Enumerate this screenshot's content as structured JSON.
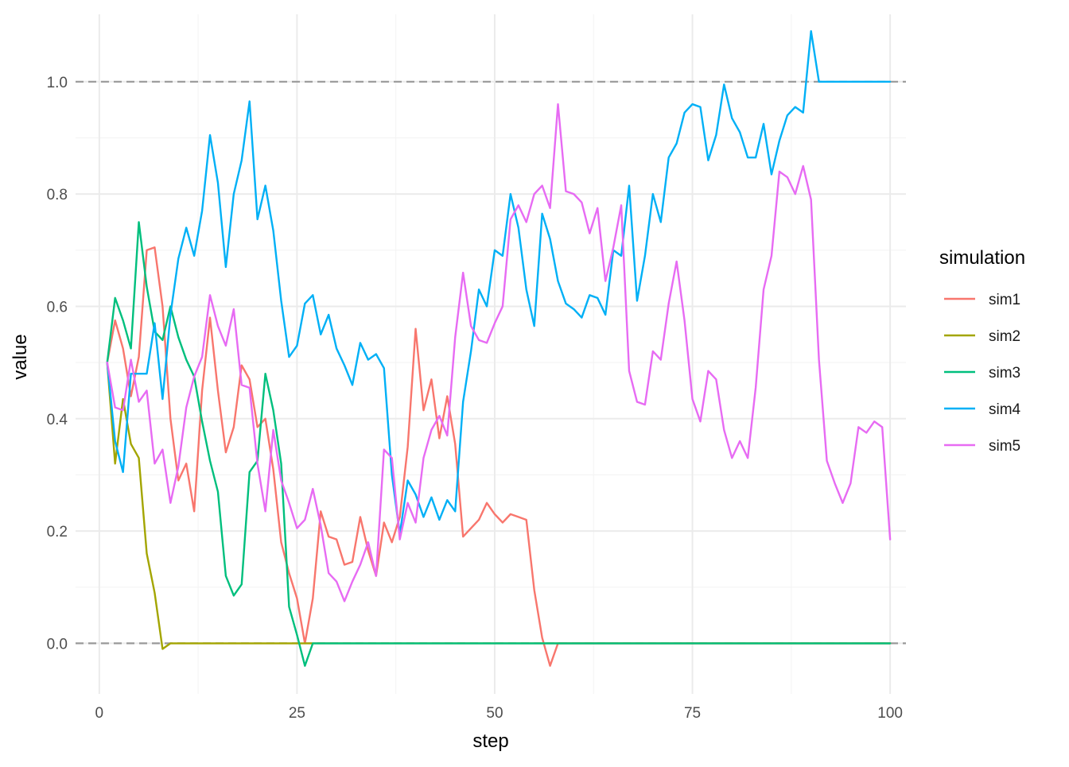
{
  "chart_data": {
    "type": "line",
    "xlabel": "step",
    "ylabel": "value",
    "xlim": [
      -3,
      102
    ],
    "ylim": [
      -0.09,
      1.12
    ],
    "x_ticks": [
      0,
      25,
      50,
      75,
      100
    ],
    "y_ticks": [
      0.0,
      0.2,
      0.4,
      0.6,
      0.8,
      1.0
    ],
    "x_tick_labels": [
      "0",
      "25",
      "50",
      "75",
      "100"
    ],
    "y_tick_labels": [
      "0.0",
      "0.2",
      "0.4",
      "0.6",
      "0.8",
      "1.0"
    ],
    "reference_lines": [
      0,
      1
    ],
    "grid": true,
    "legend": {
      "title": "simulation",
      "position": "right"
    },
    "series": [
      {
        "name": "sim1",
        "color": "#F8766D",
        "x": [
          1,
          2,
          3,
          4,
          5,
          6,
          7,
          8,
          9,
          10,
          11,
          12,
          13,
          14,
          15,
          16,
          17,
          18,
          19,
          20,
          21,
          22,
          23,
          24,
          25,
          26,
          27,
          28,
          29,
          30,
          31,
          32,
          33,
          34,
          35,
          36,
          37,
          38,
          39,
          40,
          41,
          42,
          43,
          44,
          45,
          46,
          47,
          48,
          49,
          50,
          51,
          52,
          53,
          54,
          55,
          56,
          57,
          58,
          59,
          60,
          61,
          62,
          63,
          64,
          65,
          66,
          67,
          68,
          69,
          70,
          71,
          72,
          73,
          74,
          75,
          76,
          77,
          78,
          79,
          80,
          81,
          82,
          83,
          84,
          85,
          86,
          87,
          88,
          89,
          90,
          91,
          92,
          93,
          94,
          95,
          96,
          97,
          98,
          99,
          100
        ],
        "values": [
          0.5,
          0.575,
          0.525,
          0.44,
          0.51,
          0.7,
          0.705,
          0.6,
          0.4,
          0.29,
          0.32,
          0.235,
          0.45,
          0.58,
          0.45,
          0.34,
          0.385,
          0.495,
          0.47,
          0.385,
          0.4,
          0.31,
          0.18,
          0.125,
          0.08,
          0.0,
          0.08,
          0.235,
          0.19,
          0.185,
          0.14,
          0.145,
          0.225,
          0.165,
          0.12,
          0.215,
          0.18,
          0.225,
          0.35,
          0.56,
          0.415,
          0.47,
          0.365,
          0.44,
          0.355,
          0.19,
          0.205,
          0.22,
          0.25,
          0.23,
          0.215,
          0.23,
          0.225,
          0.22,
          0.095,
          0.01,
          -0.04,
          0.0,
          0.0,
          0.0,
          0.0,
          0.0,
          0.0,
          0.0,
          0.0,
          0.0,
          0.0,
          0.0,
          0.0,
          0.0,
          0.0,
          0.0,
          0.0,
          0.0,
          0.0,
          0.0,
          0.0,
          0.0,
          0.0,
          0.0,
          0.0,
          0.0,
          0.0,
          0.0,
          0.0,
          0.0,
          0.0,
          0.0,
          0.0,
          0.0,
          0.0,
          0.0,
          0.0,
          0.0,
          0.0,
          0.0,
          0.0,
          0.0,
          0.0,
          0.0
        ]
      },
      {
        "name": "sim2",
        "color": "#A3A500",
        "x": [
          1,
          2,
          3,
          4,
          5,
          6,
          7,
          8,
          9,
          10,
          11,
          12,
          13,
          14,
          15,
          16,
          17,
          18,
          19,
          20,
          21,
          22,
          23,
          24,
          25,
          26,
          27,
          28,
          29,
          30,
          31,
          32,
          33,
          34,
          35,
          36,
          37,
          38,
          39,
          40,
          41,
          42,
          43,
          44,
          45,
          46,
          47,
          48,
          49,
          50,
          51,
          52,
          53,
          54,
          55,
          56,
          57,
          58,
          59,
          60,
          61,
          62,
          63,
          64,
          65,
          66,
          67,
          68,
          69,
          70,
          71,
          72,
          73,
          74,
          75,
          76,
          77,
          78,
          79,
          80,
          81,
          82,
          83,
          84,
          85,
          86,
          87,
          88,
          89,
          90,
          91,
          92,
          93,
          94,
          95,
          96,
          97,
          98,
          99,
          100
        ],
        "values": [
          0.5,
          0.32,
          0.435,
          0.355,
          0.33,
          0.16,
          0.09,
          -0.01,
          0.0,
          0.0,
          0.0,
          0.0,
          0.0,
          0.0,
          0.0,
          0.0,
          0.0,
          0.0,
          0.0,
          0.0,
          0.0,
          0.0,
          0.0,
          0.0,
          0.0,
          0.0,
          0.0,
          0.0,
          0.0,
          0.0,
          0.0,
          0.0,
          0.0,
          0.0,
          0.0,
          0.0,
          0.0,
          0.0,
          0.0,
          0.0,
          0.0,
          0.0,
          0.0,
          0.0,
          0.0,
          0.0,
          0.0,
          0.0,
          0.0,
          0.0,
          0.0,
          0.0,
          0.0,
          0.0,
          0.0,
          0.0,
          0.0,
          0.0,
          0.0,
          0.0,
          0.0,
          0.0,
          0.0,
          0.0,
          0.0,
          0.0,
          0.0,
          0.0,
          0.0,
          0.0,
          0.0,
          0.0,
          0.0,
          0.0,
          0.0,
          0.0,
          0.0,
          0.0,
          0.0,
          0.0,
          0.0,
          0.0,
          0.0,
          0.0,
          0.0,
          0.0,
          0.0,
          0.0,
          0.0,
          0.0,
          0.0,
          0.0,
          0.0,
          0.0,
          0.0,
          0.0,
          0.0,
          0.0,
          0.0,
          0.0
        ]
      },
      {
        "name": "sim3",
        "color": "#00BF7D",
        "x": [
          1,
          2,
          3,
          4,
          5,
          6,
          7,
          8,
          9,
          10,
          11,
          12,
          13,
          14,
          15,
          16,
          17,
          18,
          19,
          20,
          21,
          22,
          23,
          24,
          25,
          26,
          27,
          28,
          29,
          30,
          31,
          32,
          33,
          34,
          35,
          36,
          37,
          38,
          39,
          40,
          41,
          42,
          43,
          44,
          45,
          46,
          47,
          48,
          49,
          50,
          51,
          52,
          53,
          54,
          55,
          56,
          57,
          58,
          59,
          60,
          61,
          62,
          63,
          64,
          65,
          66,
          67,
          68,
          69,
          70,
          71,
          72,
          73,
          74,
          75,
          76,
          77,
          78,
          79,
          80,
          81,
          82,
          83,
          84,
          85,
          86,
          87,
          88,
          89,
          90,
          91,
          92,
          93,
          94,
          95,
          96,
          97,
          98,
          99,
          100
        ],
        "values": [
          0.5,
          0.615,
          0.575,
          0.525,
          0.75,
          0.635,
          0.555,
          0.54,
          0.6,
          0.545,
          0.505,
          0.475,
          0.395,
          0.325,
          0.27,
          0.12,
          0.085,
          0.105,
          0.305,
          0.325,
          0.48,
          0.415,
          0.32,
          0.065,
          0.015,
          -0.04,
          0.0,
          0.0,
          0.0,
          0.0,
          0.0,
          0.0,
          0.0,
          0.0,
          0.0,
          0.0,
          0.0,
          0.0,
          0.0,
          0.0,
          0.0,
          0.0,
          0.0,
          0.0,
          0.0,
          0.0,
          0.0,
          0.0,
          0.0,
          0.0,
          0.0,
          0.0,
          0.0,
          0.0,
          0.0,
          0.0,
          0.0,
          0.0,
          0.0,
          0.0,
          0.0,
          0.0,
          0.0,
          0.0,
          0.0,
          0.0,
          0.0,
          0.0,
          0.0,
          0.0,
          0.0,
          0.0,
          0.0,
          0.0,
          0.0,
          0.0,
          0.0,
          0.0,
          0.0,
          0.0,
          0.0,
          0.0,
          0.0,
          0.0,
          0.0,
          0.0,
          0.0,
          0.0,
          0.0,
          0.0,
          0.0,
          0.0,
          0.0,
          0.0,
          0.0,
          0.0,
          0.0,
          0.0,
          0.0,
          0.0
        ]
      },
      {
        "name": "sim4",
        "color": "#00B0F6",
        "x": [
          1,
          2,
          3,
          4,
          5,
          6,
          7,
          8,
          9,
          10,
          11,
          12,
          13,
          14,
          15,
          16,
          17,
          18,
          19,
          20,
          21,
          22,
          23,
          24,
          25,
          26,
          27,
          28,
          29,
          30,
          31,
          32,
          33,
          34,
          35,
          36,
          37,
          38,
          39,
          40,
          41,
          42,
          43,
          44,
          45,
          46,
          47,
          48,
          49,
          50,
          51,
          52,
          53,
          54,
          55,
          56,
          57,
          58,
          59,
          60,
          61,
          62,
          63,
          64,
          65,
          66,
          67,
          68,
          69,
          70,
          71,
          72,
          73,
          74,
          75,
          76,
          77,
          78,
          79,
          80,
          81,
          82,
          83,
          84,
          85,
          86,
          87,
          88,
          89,
          90,
          91,
          92,
          93,
          94,
          95,
          96,
          97,
          98,
          99,
          100
        ],
        "values": [
          0.5,
          0.36,
          0.305,
          0.48,
          0.48,
          0.48,
          0.57,
          0.435,
          0.585,
          0.685,
          0.74,
          0.69,
          0.77,
          0.905,
          0.82,
          0.67,
          0.8,
          0.86,
          0.965,
          0.755,
          0.815,
          0.735,
          0.61,
          0.51,
          0.53,
          0.605,
          0.62,
          0.55,
          0.585,
          0.525,
          0.495,
          0.46,
          0.535,
          0.505,
          0.515,
          0.49,
          0.3,
          0.195,
          0.29,
          0.265,
          0.225,
          0.26,
          0.22,
          0.255,
          0.235,
          0.43,
          0.52,
          0.63,
          0.6,
          0.7,
          0.69,
          0.8,
          0.74,
          0.63,
          0.565,
          0.765,
          0.72,
          0.645,
          0.605,
          0.595,
          0.58,
          0.62,
          0.615,
          0.585,
          0.7,
          0.69,
          0.815,
          0.61,
          0.69,
          0.8,
          0.75,
          0.865,
          0.89,
          0.945,
          0.96,
          0.955,
          0.86,
          0.905,
          0.995,
          0.935,
          0.91,
          0.865,
          0.865,
          0.925,
          0.835,
          0.895,
          0.94,
          0.955,
          0.945,
          1.09,
          1.0,
          1.0,
          1.0,
          1.0,
          1.0,
          1.0,
          1.0,
          1.0,
          1.0,
          1.0
        ]
      },
      {
        "name": "sim5",
        "color": "#E76BF3",
        "x": [
          1,
          2,
          3,
          4,
          5,
          6,
          7,
          8,
          9,
          10,
          11,
          12,
          13,
          14,
          15,
          16,
          17,
          18,
          19,
          20,
          21,
          22,
          23,
          24,
          25,
          26,
          27,
          28,
          29,
          30,
          31,
          32,
          33,
          34,
          35,
          36,
          37,
          38,
          39,
          40,
          41,
          42,
          43,
          44,
          45,
          46,
          47,
          48,
          49,
          50,
          51,
          52,
          53,
          54,
          55,
          56,
          57,
          58,
          59,
          60,
          61,
          62,
          63,
          64,
          65,
          66,
          67,
          68,
          69,
          70,
          71,
          72,
          73,
          74,
          75,
          76,
          77,
          78,
          79,
          80,
          81,
          82,
          83,
          84,
          85,
          86,
          87,
          88,
          89,
          90,
          91,
          92,
          93,
          94,
          95,
          96,
          97,
          98,
          99,
          100
        ],
        "values": [
          0.5,
          0.42,
          0.415,
          0.505,
          0.43,
          0.45,
          0.32,
          0.345,
          0.25,
          0.315,
          0.42,
          0.475,
          0.51,
          0.62,
          0.565,
          0.53,
          0.595,
          0.46,
          0.455,
          0.32,
          0.235,
          0.38,
          0.29,
          0.25,
          0.205,
          0.22,
          0.275,
          0.21,
          0.125,
          0.11,
          0.075,
          0.11,
          0.14,
          0.18,
          0.12,
          0.345,
          0.33,
          0.185,
          0.25,
          0.215,
          0.33,
          0.38,
          0.405,
          0.37,
          0.545,
          0.66,
          0.565,
          0.54,
          0.535,
          0.57,
          0.6,
          0.755,
          0.78,
          0.75,
          0.8,
          0.815,
          0.775,
          0.96,
          0.805,
          0.8,
          0.785,
          0.73,
          0.775,
          0.645,
          0.705,
          0.78,
          0.485,
          0.43,
          0.425,
          0.52,
          0.505,
          0.605,
          0.68,
          0.575,
          0.435,
          0.395,
          0.485,
          0.47,
          0.38,
          0.33,
          0.36,
          0.33,
          0.455,
          0.63,
          0.69,
          0.84,
          0.83,
          0.8,
          0.85,
          0.79,
          0.505,
          0.325,
          0.285,
          0.25,
          0.285,
          0.385,
          0.375,
          0.395,
          0.385,
          0.185
        ]
      }
    ]
  }
}
